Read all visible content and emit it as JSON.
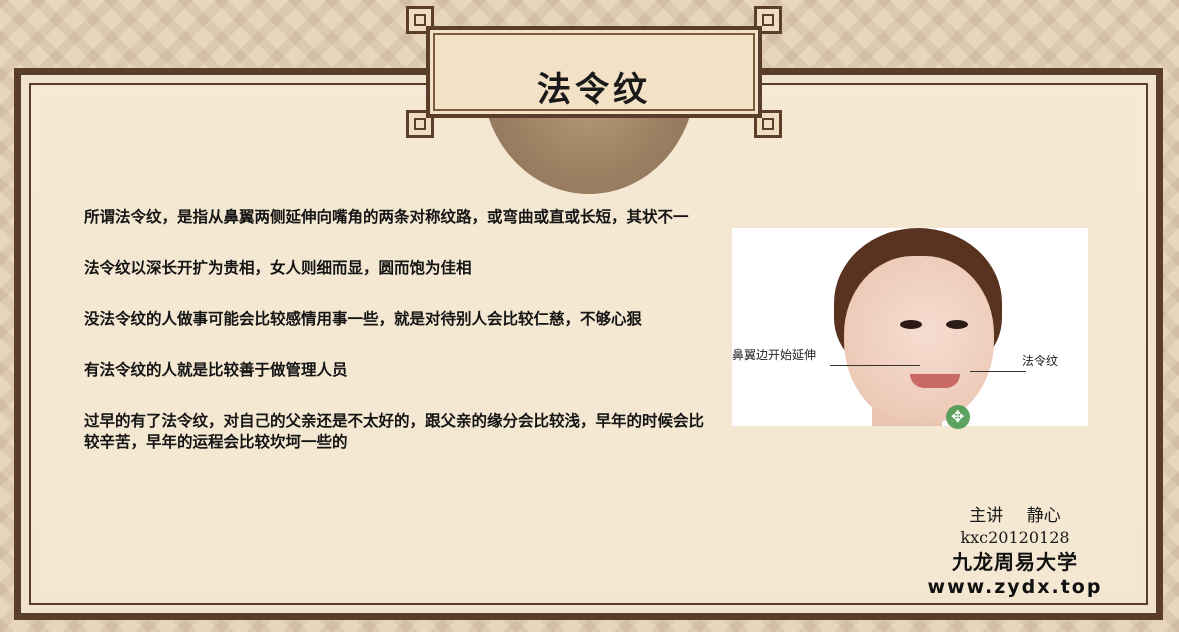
{
  "slide": {
    "title": "法令纹",
    "paragraphs": [
      "所谓法令纹，是指从鼻翼两侧延伸向嘴角的两条对称纹路，或弯曲或直或长短，其状不一",
      "法令纹以深长开扩为贵相，女人则细而显，圆而饱为佳相",
      "没法令纹的人做事可能会比较感情用事一些，就是对待别人会比较仁慈，不够心狠",
      "有法令纹的人就是比较善于做管理人员",
      "过早的有了法令纹，对自己的父亲还是不太好的，跟父亲的缘分会比较浅，早年的时候会比较辛苦，早年的运程会比较坎坷一些的"
    ],
    "photo": {
      "label_left": "鼻翼边开始延伸",
      "label_right": "法令纹"
    },
    "credits": {
      "lecturer": "主讲 静心",
      "code": "kxc20120128",
      "school": "九龙周易大学",
      "website": "www.zydx.top"
    }
  },
  "colors": {
    "frame": "#5a3d2a",
    "paper": "#f5e8d3",
    "cursor": "#4a9a52"
  }
}
